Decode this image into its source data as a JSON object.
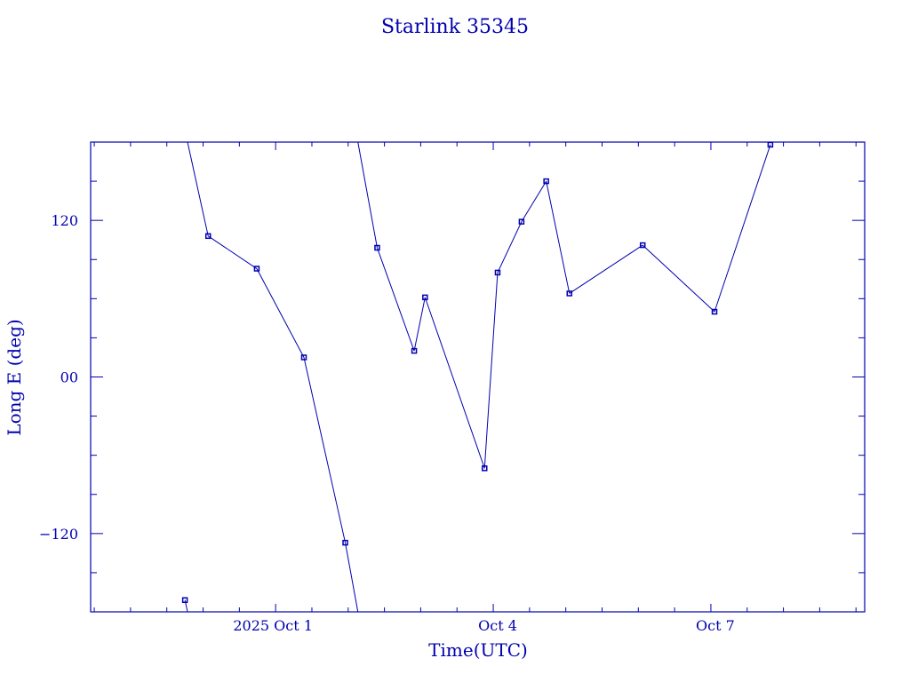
{
  "chart_data": {
    "type": "line",
    "title": "Starlink 35345",
    "xlabel": "Time(UTC)",
    "ylabel": "Long E (deg)",
    "x_units": "days since 2025 Oct 1 00:00 UTC",
    "xlim": [
      -2.55,
      8.12
    ],
    "ylim": [
      -180,
      180
    ],
    "x_major_ticks": [
      0,
      3,
      6
    ],
    "x_tick_labels": [
      "2025 Oct  1",
      "Oct  4",
      "Oct  7"
    ],
    "x_minor_step": 0.5,
    "y_major_ticks": [
      -120,
      0,
      120
    ],
    "y_tick_labels": [
      "−120",
      "00",
      "120"
    ],
    "y_minor_step": 30,
    "longitude_wrap": true,
    "color": "#0000b0",
    "points": [
      {
        "x": -1.25,
        "y": -171
      },
      {
        "x": -0.93,
        "y": 108
      },
      {
        "x": -0.26,
        "y": 83
      },
      {
        "x": 0.39,
        "y": 15
      },
      {
        "x": 0.96,
        "y": -127
      },
      {
        "x": 1.4,
        "y": 99
      },
      {
        "x": 1.91,
        "y": 20
      },
      {
        "x": 2.06,
        "y": 61
      },
      {
        "x": 2.88,
        "y": -70
      },
      {
        "x": 3.06,
        "y": 80
      },
      {
        "x": 3.39,
        "y": 119
      },
      {
        "x": 3.73,
        "y": 150
      },
      {
        "x": 4.05,
        "y": 64
      },
      {
        "x": 5.06,
        "y": 101
      },
      {
        "x": 6.05,
        "y": 50
      },
      {
        "x": 6.82,
        "y": 178
      }
    ]
  }
}
